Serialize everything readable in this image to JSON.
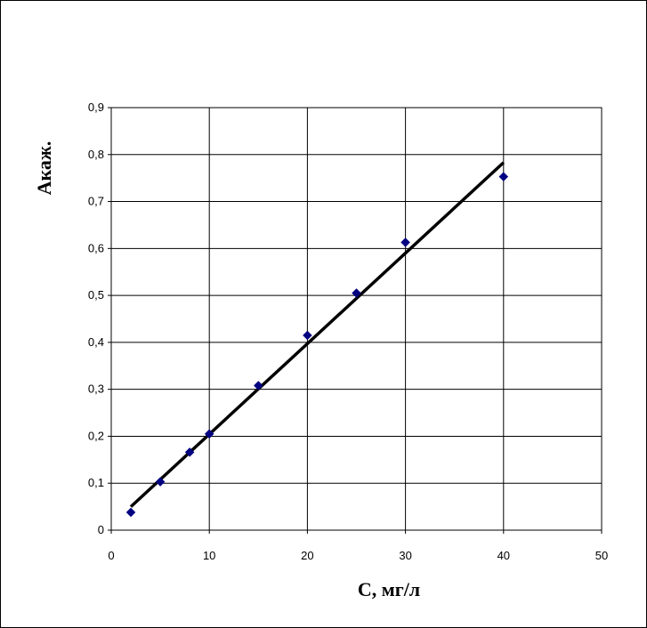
{
  "chart_data": {
    "type": "scatter",
    "title": "",
    "xlabel": "C, мг/л",
    "ylabel": "Акаж.",
    "xlim": [
      0,
      50
    ],
    "ylim": [
      0,
      0.9
    ],
    "x_ticks": [
      0,
      10,
      20,
      30,
      40,
      50
    ],
    "y_ticks": [
      0,
      0.1,
      0.2,
      0.3,
      0.4,
      0.5,
      0.6,
      0.7,
      0.8,
      0.9
    ],
    "x_tick_labels": [
      "0",
      "10",
      "20",
      "30",
      "40",
      "50"
    ],
    "y_tick_labels": [
      "0",
      "0,1",
      "0,2",
      "0,3",
      "0,4",
      "0,5",
      "0,6",
      "0,7",
      "0,8",
      "0,9"
    ],
    "grid": true,
    "legend": "none",
    "series": [
      {
        "marker": "diamond",
        "color": "#000080",
        "x": [
          2,
          5,
          8,
          10,
          15,
          20,
          25,
          30,
          40
        ],
        "y": [
          0.038,
          0.103,
          0.166,
          0.205,
          0.308,
          0.415,
          0.505,
          0.613,
          0.753
        ]
      }
    ],
    "trendline": {
      "type": "linear",
      "color": "#000000",
      "x": [
        2,
        40
      ],
      "y": [
        0.05,
        0.783
      ]
    }
  }
}
